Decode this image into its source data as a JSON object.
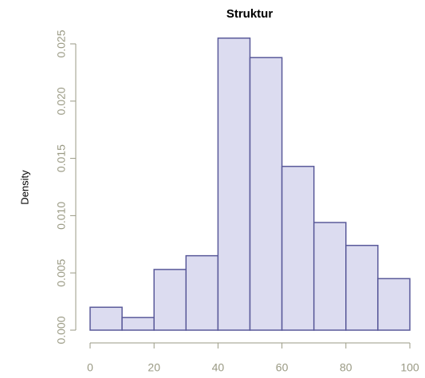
{
  "chart_data": {
    "type": "histogram",
    "title": "Struktur",
    "y_label": "Density",
    "bins": [
      0,
      10,
      20,
      30,
      40,
      50,
      60,
      70,
      80,
      90,
      100
    ],
    "values": [
      0.002,
      0.0011,
      0.0053,
      0.0065,
      0.0255,
      0.0238,
      0.0143,
      0.0094,
      0.0074,
      0.0045
    ],
    "color": "#dcdcf0",
    "edge_color": "#5a5a9a",
    "xlim": [
      0,
      100
    ],
    "xticks": [
      0,
      20,
      40,
      60,
      80,
      100
    ],
    "ylim": [
      0,
      0.025
    ],
    "yticks": [
      {
        "value": 0,
        "label": "0.000"
      },
      {
        "value": 0.005,
        "label": "0.005"
      },
      {
        "value": 0.01,
        "label": "0.010"
      },
      {
        "value": 0.015,
        "label": "0.015"
      },
      {
        "value": 0.02,
        "label": "0.020"
      },
      {
        "value": 0.025,
        "label": "0.025"
      }
    ],
    "grid": false
  }
}
